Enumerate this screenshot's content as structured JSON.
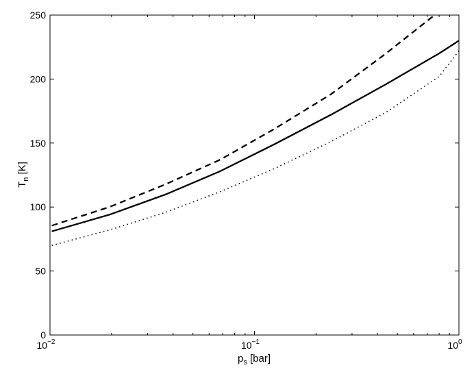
{
  "chart_data": {
    "type": "line",
    "xscale": "log",
    "xlim": [
      0.01,
      1
    ],
    "ylim": [
      0,
      250
    ],
    "xlabel": {
      "main": "p",
      "sub": "s",
      "unit": " [bar]"
    },
    "ylabel": {
      "main": "T",
      "sub": "n",
      "unit": " [K]"
    },
    "x_ticks": [
      {
        "value": 0.01,
        "base": "10",
        "exp": "−2"
      },
      {
        "value": 0.1,
        "base": "10",
        "exp": "−1"
      },
      {
        "value": 1,
        "base": "10",
        "exp": "0"
      }
    ],
    "y_ticks": [
      "0",
      "50",
      "100",
      "150",
      "200",
      "250"
    ],
    "grid": false,
    "series": [
      {
        "style": "solid",
        "color": "#000000",
        "x": [
          0.0102,
          0.0195,
          0.037,
          0.068,
          0.125,
          0.236,
          0.44,
          0.8,
          1.0
        ],
        "y": [
          81,
          94,
          110,
          128,
          149,
          172,
          196,
          220,
          230
        ]
      },
      {
        "style": "dashed",
        "color": "#000000",
        "x": [
          0.0102,
          0.0195,
          0.037,
          0.068,
          0.125,
          0.236,
          0.44,
          0.76
        ],
        "y": [
          85.5,
          100,
          118,
          137,
          161,
          188,
          220,
          250
        ]
      },
      {
        "style": "dotted",
        "color": "#000000",
        "x": [
          0.0102,
          0.0195,
          0.037,
          0.068,
          0.125,
          0.236,
          0.44,
          0.8,
          1.0
        ],
        "y": [
          70,
          82,
          96,
          112,
          130,
          151,
          174,
          202,
          222
        ]
      }
    ]
  }
}
